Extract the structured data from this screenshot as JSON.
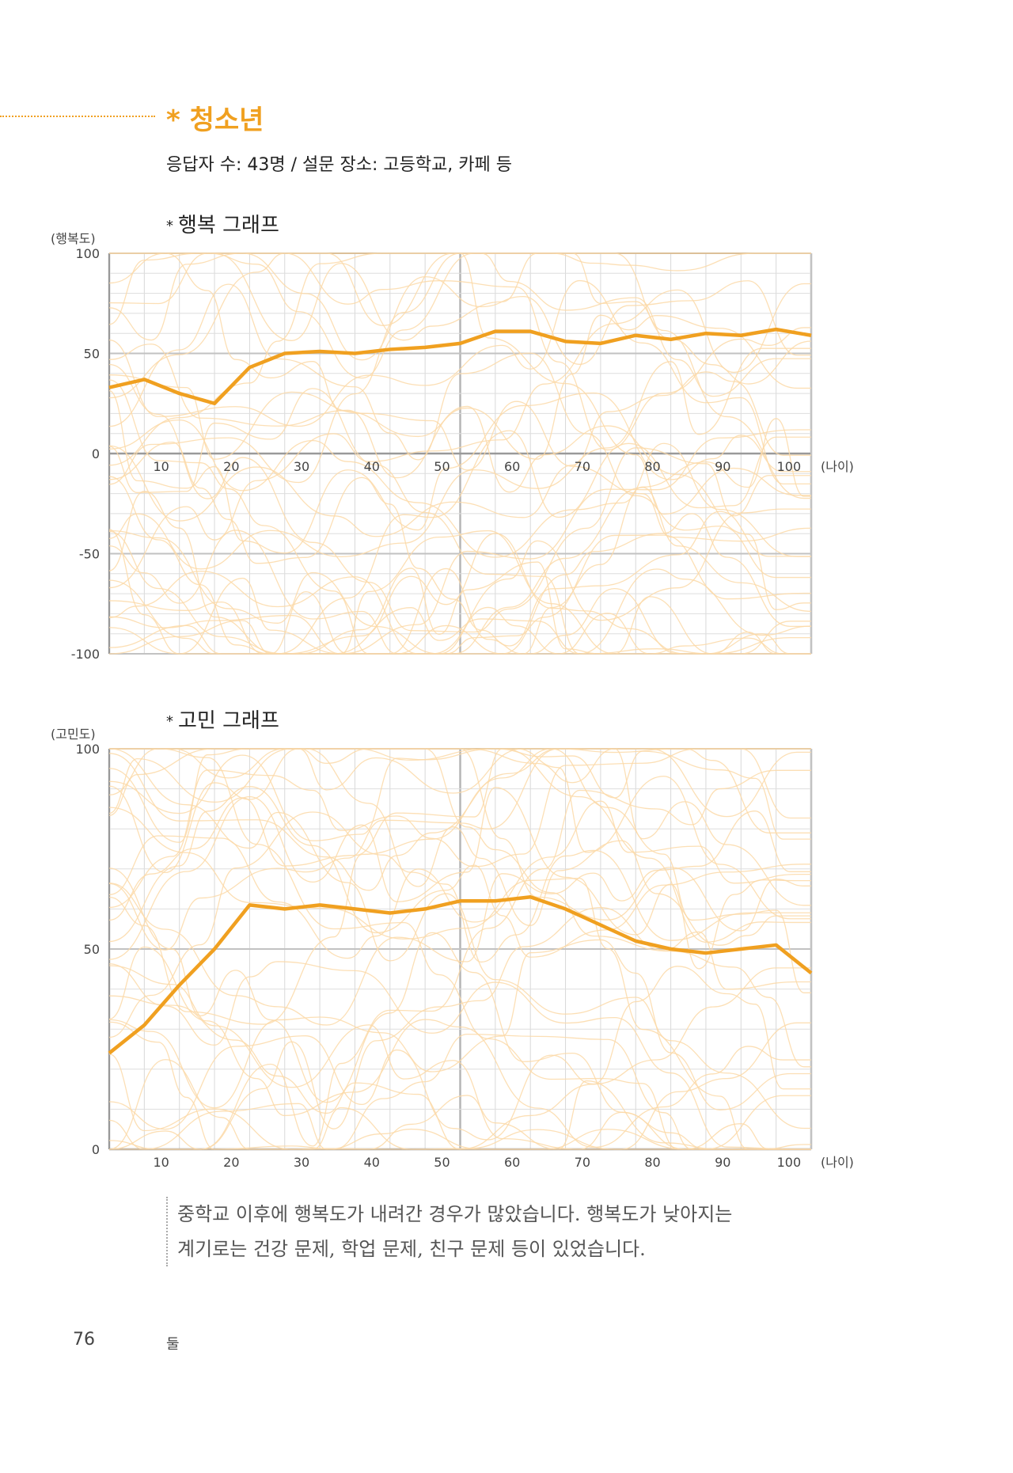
{
  "header": {
    "title": "청소년",
    "title_marker": "*",
    "subtitle": "응답자 수: 43명 / 설문 장소: 고등학교, 카페 등"
  },
  "colors": {
    "accent": "#f0a020",
    "background_lines": "#fbd9a8",
    "grid": "#cccccc"
  },
  "chart_data": [
    {
      "type": "line",
      "title": "행복 그래프",
      "title_marker": "*",
      "ylabel": "(행복도)",
      "xlabel": "(나이)",
      "xlim": [
        1,
        101
      ],
      "ylim": [
        -100,
        100
      ],
      "x_ticks": [
        "10",
        "20",
        "30",
        "40",
        "50",
        "60",
        "70",
        "80",
        "90",
        "100"
      ],
      "y_ticks": [
        "100",
        "50",
        "0",
        "-50",
        "-100"
      ],
      "grid": true,
      "series": [
        {
          "role": "average",
          "x": [
            1,
            6,
            11,
            16,
            21,
            26,
            31,
            36,
            41,
            46,
            51,
            56,
            61,
            66,
            71,
            76,
            81,
            86,
            91,
            96,
            101
          ],
          "values": [
            33,
            37,
            30,
            25,
            43,
            50,
            51,
            50,
            52,
            53,
            55,
            61,
            61,
            56,
            55,
            59,
            57,
            60,
            59,
            62,
            59
          ]
        }
      ]
    },
    {
      "type": "line",
      "title": "고민 그래프",
      "title_marker": "*",
      "ylabel": "(고민도)",
      "xlabel": "(나이)",
      "xlim": [
        1,
        101
      ],
      "ylim": [
        0,
        100
      ],
      "x_ticks": [
        "10",
        "20",
        "30",
        "40",
        "50",
        "60",
        "70",
        "80",
        "90",
        "100"
      ],
      "y_ticks": [
        "100",
        "50",
        "0"
      ],
      "grid": true,
      "series": [
        {
          "role": "average",
          "x": [
            1,
            6,
            11,
            16,
            21,
            26,
            31,
            36,
            41,
            46,
            51,
            56,
            61,
            66,
            71,
            76,
            81,
            86,
            91,
            96,
            101
          ],
          "values": [
            24,
            31,
            41,
            50,
            61,
            60,
            61,
            60,
            59,
            60,
            62,
            62,
            63,
            60,
            56,
            52,
            50,
            49,
            50,
            51,
            44
          ]
        }
      ]
    }
  ],
  "note": {
    "line1": "중학교 이후에 행복도가 내려간 경우가 많았습니다. 행복도가 낮아지는",
    "line2": "계기로는 건강 문제, 학업 문제, 친구 문제 등이 있었습니다."
  },
  "footer": {
    "page_number": "76",
    "section": "둘"
  }
}
